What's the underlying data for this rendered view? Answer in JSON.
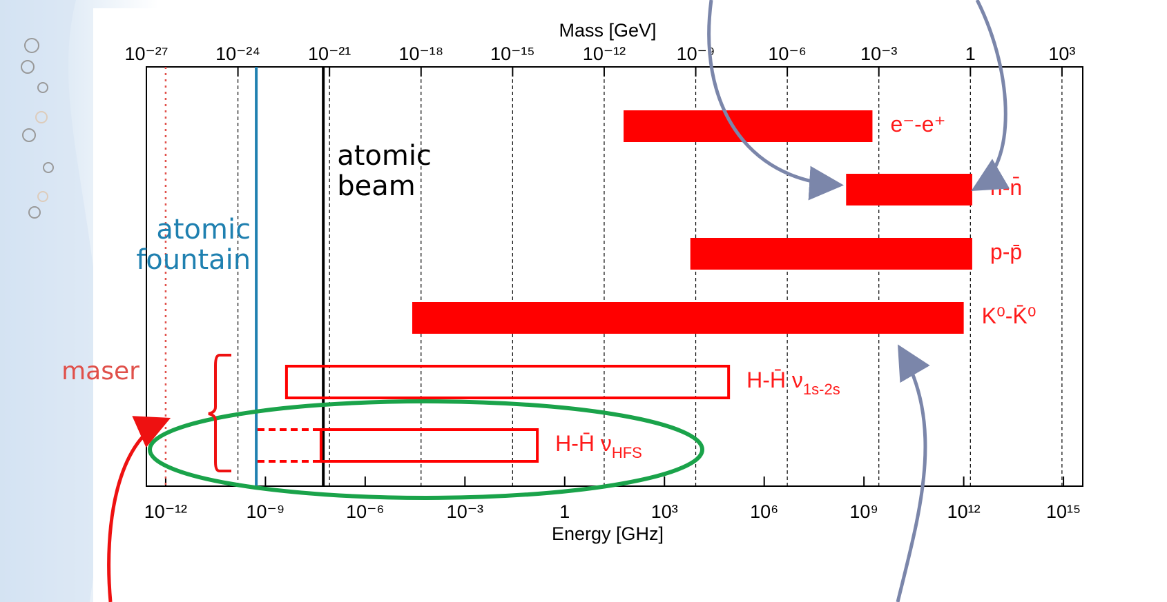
{
  "chart_data": {
    "type": "bar",
    "orientation": "horizontal",
    "xscale": "log",
    "xlabel": "Energy [GHz]",
    "x2label": "Mass [GeV]",
    "xlim": [
      2.63e-13,
      3800000000000000.0
    ],
    "xticks": [
      {
        "value": 1e-12,
        "label": "10⁻¹²"
      },
      {
        "value": 1e-09,
        "label": "10⁻⁹"
      },
      {
        "value": 1e-06,
        "label": "10⁻⁶"
      },
      {
        "value": 0.001,
        "label": "10⁻³"
      },
      1,
      {
        "value": 1000.0,
        "label": "10³"
      },
      {
        "value": 1000000.0,
        "label": "10⁶"
      },
      {
        "value": 1000000000.0,
        "label": "10⁹"
      },
      {
        "value": 1000000000000.0,
        "label": "10¹²"
      },
      {
        "value": 1000000000000000.0,
        "label": "10¹⁵"
      }
    ],
    "x2lim": [
      1e-27,
      4800.0
    ],
    "x2ticks": [
      {
        "value": 1e-27,
        "label": "10⁻²⁷"
      },
      {
        "value": 1e-24,
        "label": "10⁻²⁴"
      },
      {
        "value": 1e-21,
        "label": "10⁻²¹"
      },
      {
        "value": 1e-18,
        "label": "10⁻¹⁸"
      },
      {
        "value": 1e-15,
        "label": "10⁻¹⁵"
      },
      {
        "value": 1e-12,
        "label": "10⁻¹²"
      },
      {
        "value": 1e-09,
        "label": "10⁻⁹"
      },
      {
        "value": 1e-06,
        "label": "10⁻⁶"
      },
      {
        "value": 0.001,
        "label": "10⁻³"
      },
      1,
      {
        "value": 1000.0,
        "label": "10³"
      }
    ],
    "grid": true,
    "color": "#ff0000",
    "bars": [
      {
        "label": "e⁻-e⁺",
        "start": 59,
        "end": 1800000000.0,
        "style": "filled"
      },
      {
        "label": "n-n̄",
        "start": 290000000.0,
        "end": 1800000000000.0,
        "style": "filled"
      },
      {
        "label": "p-p̄",
        "start": 6000,
        "end": 1800000000000.0,
        "style": "filled"
      },
      {
        "label": "K⁰-K̄⁰",
        "start": 2.6e-05,
        "end": 1000000000000.0,
        "style": "filled"
      },
      {
        "label": "H-H̄  ν",
        "sub": "1s-2s",
        "start": 4.3e-09,
        "end": 85000,
        "style": "outline"
      },
      {
        "label": "H-H̄  ν",
        "sub": "HFS",
        "start": 4.7e-08,
        "end": 0.15,
        "style": "outline",
        "dashed_start": 5.8e-10
      }
    ],
    "vlines": [
      {
        "lines": [
          "maser"
        ],
        "value": 1e-12,
        "color": "#e0504a",
        "style": "dotted"
      },
      {
        "lines": [
          "atomic",
          "fountain"
        ],
        "value": 5.3e-10,
        "color": "#1f80b0",
        "style": "solid"
      },
      {
        "lines": [
          "atomic",
          "beam"
        ],
        "value": 5.5e-08,
        "color": "#000000",
        "style": "solid"
      }
    ]
  }
}
